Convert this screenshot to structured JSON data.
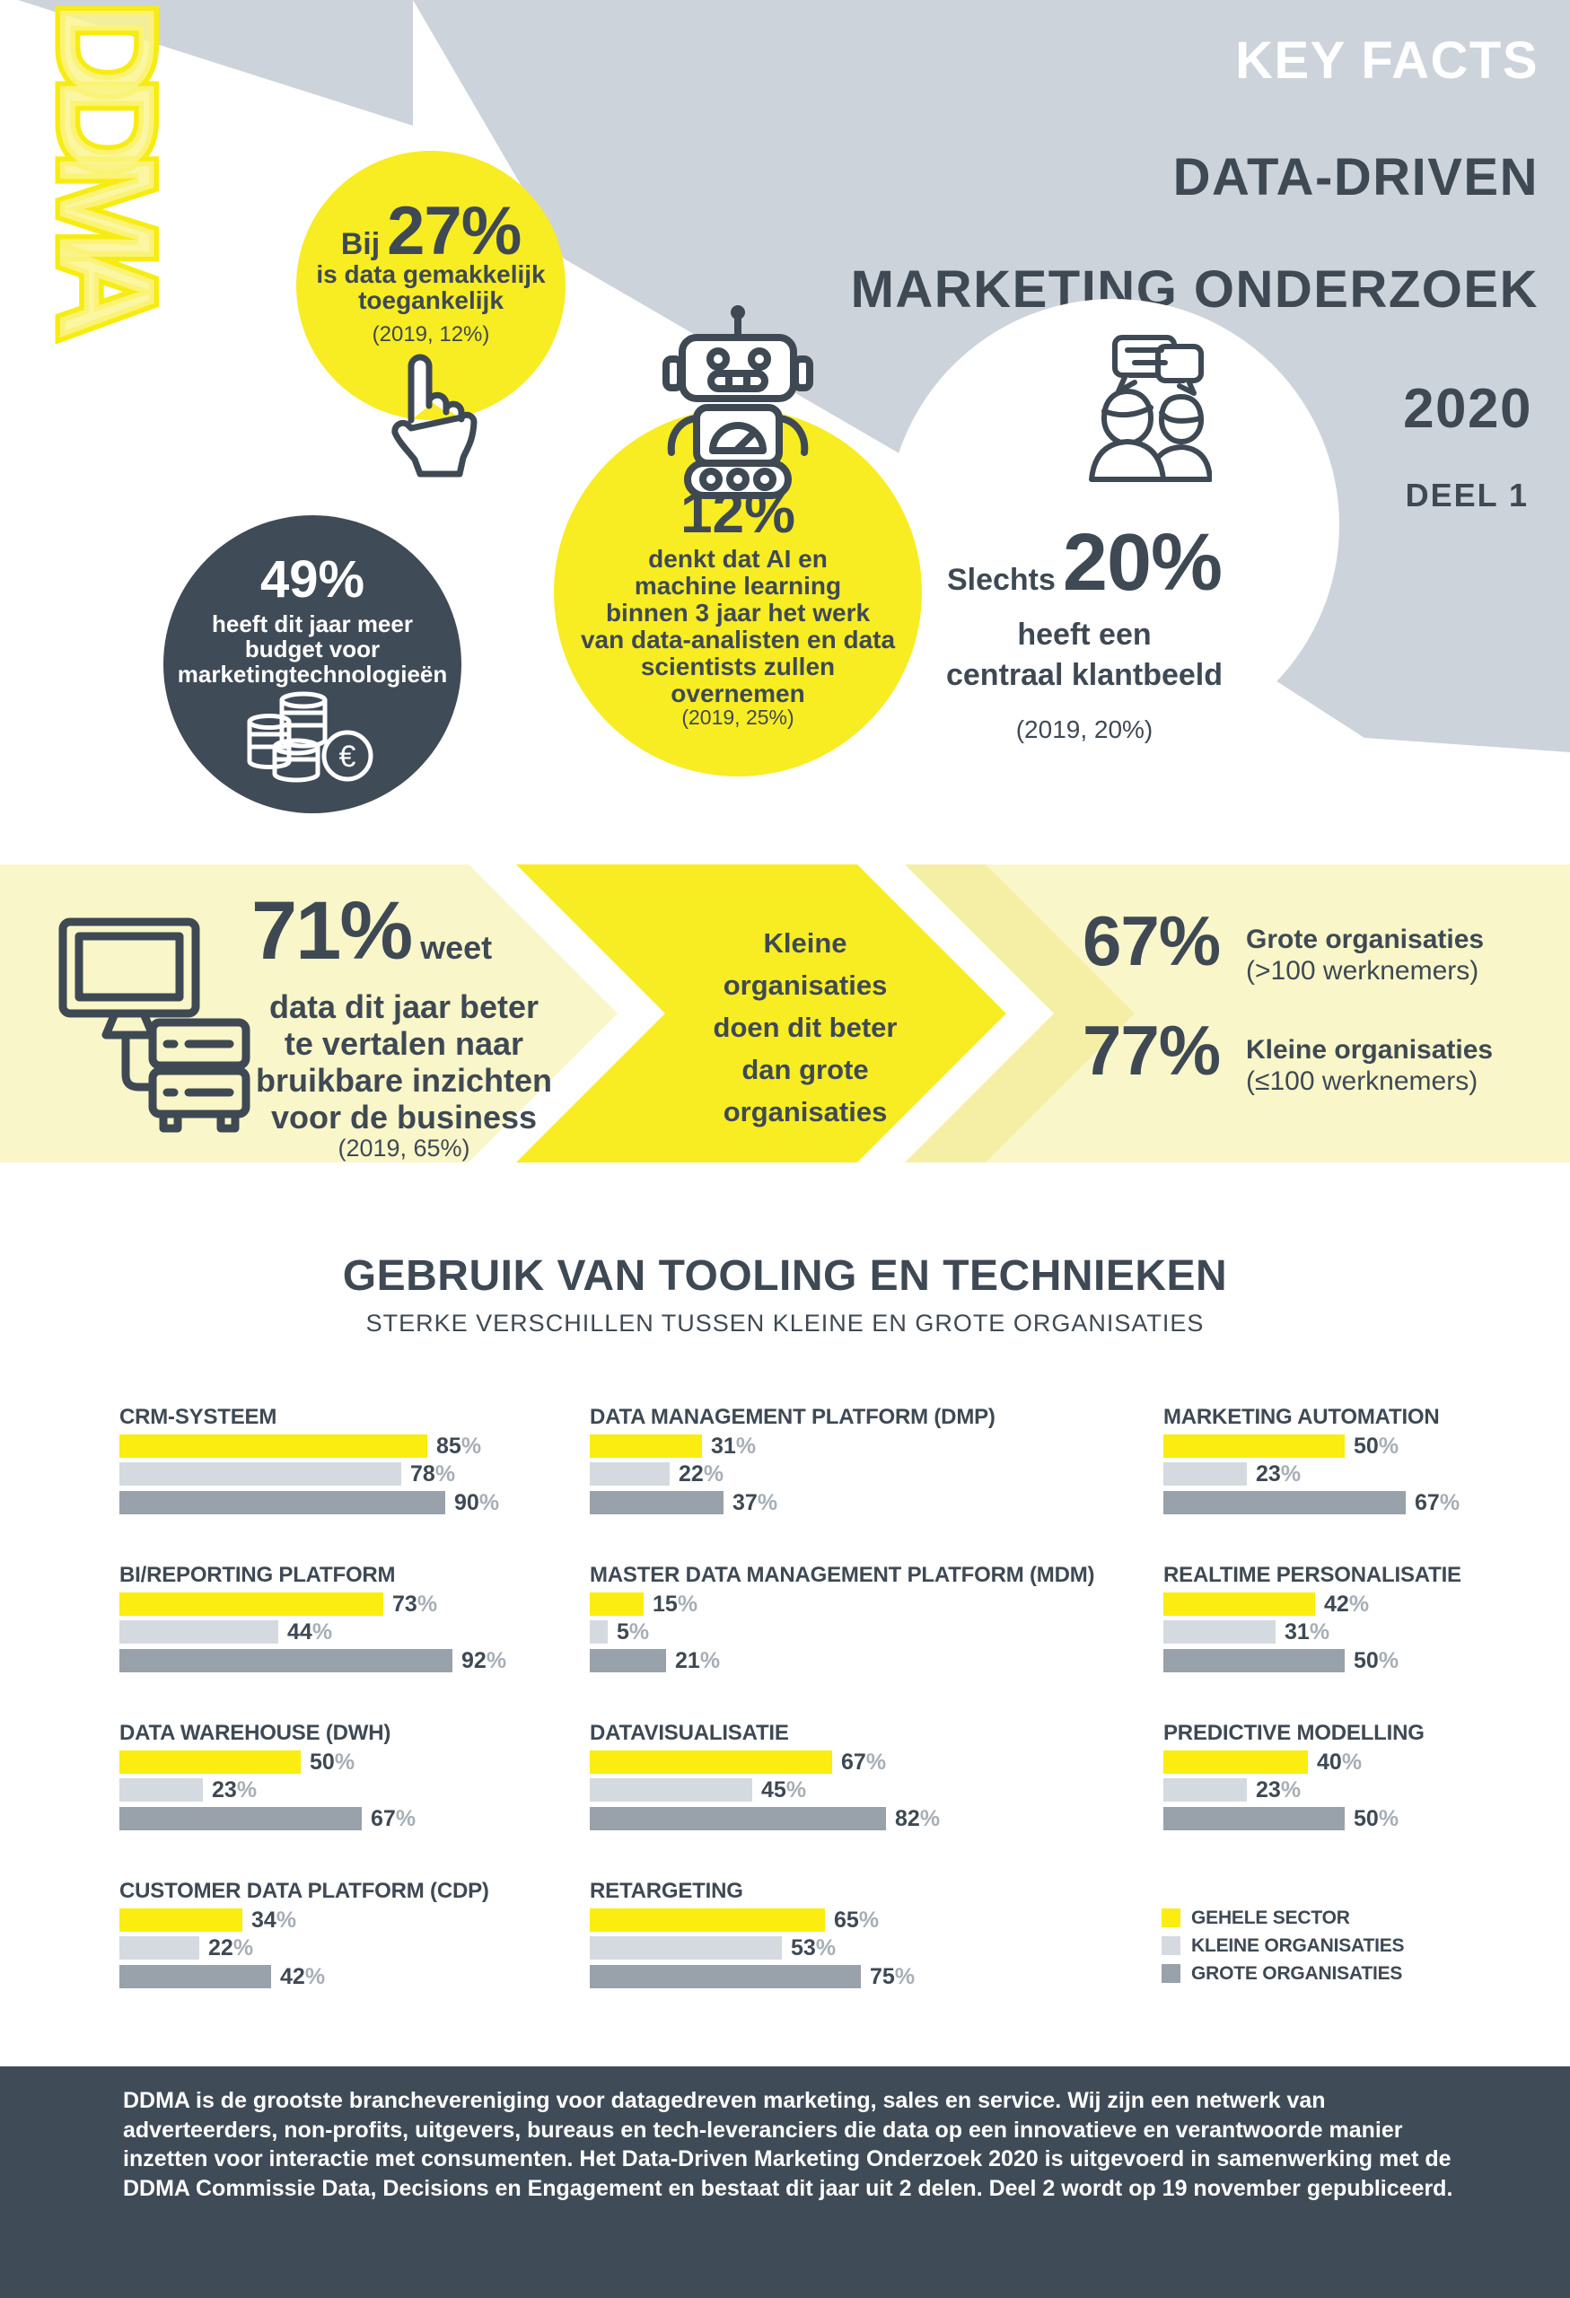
{
  "brand": {
    "logo_text": "DDMA"
  },
  "header": {
    "line1": "KEY FACTS",
    "line2": "DATA-DRIVEN",
    "line3": "MARKETING ONDERZOEK",
    "line4": "2020",
    "line5": "DEEL 1"
  },
  "stats": {
    "stat27": {
      "prefix": "Bij",
      "value": "27%",
      "lines": [
        "is data gemakkelijk",
        "toegankelijk"
      ],
      "note": "(2019, 12%)"
    },
    "stat49": {
      "value": "49%",
      "lines": [
        "heeft dit jaar meer",
        "budget voor",
        "marketingtechnologieën"
      ]
    },
    "stat12": {
      "value": "12%",
      "lines": [
        "denkt dat AI en",
        "machine learning",
        "binnen 3 jaar het werk",
        "van data-analisten en data",
        "scientists zullen",
        "overnemen"
      ],
      "note": "(2019, 25%)"
    },
    "stat20": {
      "prefix": "Slechts",
      "value": "20%",
      "line1": "heeft een",
      "line2": "centraal klantbeeld",
      "note": "(2019, 20%)"
    }
  },
  "band": {
    "stat71": {
      "value": "71%",
      "suffix": "weet",
      "lines": [
        "data dit jaar beter",
        "te vertalen naar",
        "bruikbare inzichten",
        "voor de business"
      ],
      "note": "(2019, 65%)"
    },
    "arrow_lines": [
      "Kleine",
      "organisaties",
      "doen dit beter",
      "dan grote",
      "organisaties"
    ],
    "stat67": {
      "value": "67%",
      "label": "Grote organisaties",
      "sub": "(>100 werknemers)"
    },
    "stat77": {
      "value": "77%",
      "label": "Kleine organisaties",
      "sub": "(≤100 werknemers)"
    }
  },
  "tools_section": {
    "title": "GEBRUIK VAN TOOLING EN TECHNIEKEN",
    "subtitle": "STERKE VERSCHILLEN TUSSEN KLEINE EN GROTE ORGANISATIES",
    "legend": [
      {
        "label": "GEHELE SECTOR",
        "color": "#FAED0F"
      },
      {
        "label": "KLEINE ORGANISATIES",
        "color": "#D5DAE0"
      },
      {
        "label": "GROTE ORGANISATIES",
        "color": "#99A1AA"
      }
    ]
  },
  "chart_data": {
    "type": "bar",
    "orientation": "horizontal",
    "unit": "%",
    "title": "GEBRUIK VAN TOOLING EN TECHNIEKEN",
    "subtitle": "STERKE VERSCHILLEN TUSSEN KLEINE EN GROTE ORGANISATIES",
    "xlim": [
      0,
      100
    ],
    "grid": false,
    "legend_position": "bottom-right",
    "categories": [
      "CRM-SYSTEEM",
      "DATA MANAGEMENT PLATFORM (DMP)",
      "MARKETING AUTOMATION",
      "BI/REPORTING PLATFORM",
      "MASTER DATA MANAGEMENT PLATFORM (MDM)",
      "REALTIME PERSONALISATIE",
      "DATA WAREHOUSE (DWH)",
      "DATAVISUALISATIE",
      "PREDICTIVE MODELLING",
      "CUSTOMER DATA PLATFORM (CDP)",
      "RETARGETING"
    ],
    "series": [
      {
        "name": "Gehele sector",
        "values": [
          85,
          31,
          50,
          73,
          15,
          42,
          50,
          67,
          40,
          34,
          65
        ]
      },
      {
        "name": "Kleine organisaties",
        "values": [
          78,
          22,
          23,
          44,
          5,
          31,
          23,
          45,
          23,
          22,
          53
        ]
      },
      {
        "name": "Grote organisaties",
        "values": [
          90,
          37,
          67,
          92,
          21,
          50,
          67,
          82,
          50,
          42,
          75
        ]
      }
    ]
  },
  "footer": {
    "text": "DDMA is de grootste branchevereniging voor datagedreven marketing, sales en service. Wij zijn een netwerk van adverteerders, non-profits, uitgevers, bureaus en tech-leveranciers die data op een innovatieve en verantwoorde manier inzetten voor interactie met consumenten. Het Data-Driven Marketing Onderzoek 2020 is uitgevoerd in samenwerking met de DDMA Commissie Data, Decisions en Engagement en bestaat dit jaar uit 2 delen. Deel 2 wordt op 19 november gepubliceerd."
  },
  "colors": {
    "slate": "#3E4954",
    "gray_bg": "#CDD3DB",
    "yellow": "#F8EC23",
    "band_bg": "#F9F6C9",
    "pale_chevron": "#F5EFA6",
    "footer_bg": "#3F4B57"
  }
}
